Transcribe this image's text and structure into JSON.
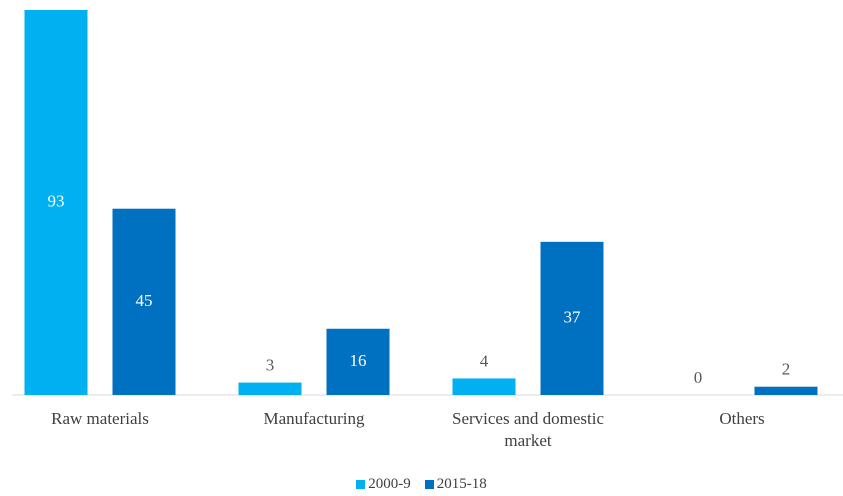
{
  "chart_data": {
    "type": "bar",
    "categories": [
      "Raw materials",
      "Manufacturing",
      "Services and domestic market",
      "Others"
    ],
    "series": [
      {
        "name": "2000-9",
        "color": "#00b0f0",
        "values": [
          93,
          3,
          4,
          0
        ]
      },
      {
        "name": "2015-18",
        "color": "#0070c0",
        "values": [
          45,
          16,
          37,
          2
        ]
      }
    ],
    "legend": "bottom"
  }
}
